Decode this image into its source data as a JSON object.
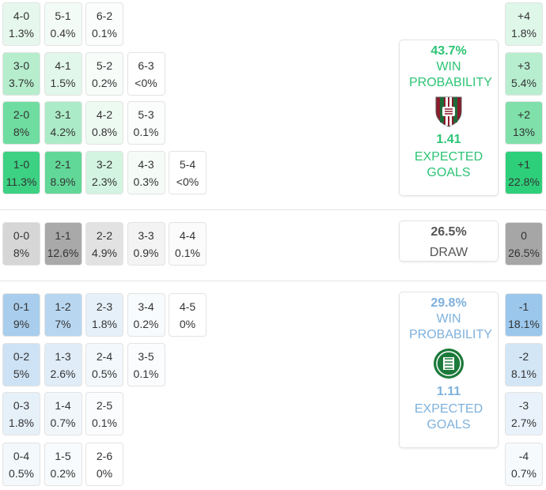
{
  "home": {
    "rows": [
      [
        {
          "score": "4-0",
          "prob": "1.3%",
          "color": "#e6f8ee"
        },
        {
          "score": "5-1",
          "prob": "0.4%",
          "color": "#f3fbf6"
        },
        {
          "score": "6-2",
          "prob": "0.1%",
          "color": "#fafdfb"
        }
      ],
      [
        {
          "score": "3-0",
          "prob": "3.7%",
          "color": "#b5edcd"
        },
        {
          "score": "4-1",
          "prob": "1.5%",
          "color": "#e2f7eb"
        },
        {
          "score": "5-2",
          "prob": "0.2%",
          "color": "#f7fcf9"
        },
        {
          "score": "6-3",
          "prob": "<0%",
          "color": "#ffffff"
        }
      ],
      [
        {
          "score": "2-0",
          "prob": "8%",
          "color": "#6fdca0"
        },
        {
          "score": "3-1",
          "prob": "4.2%",
          "color": "#acebc7"
        },
        {
          "score": "4-2",
          "prob": "0.8%",
          "color": "#edfaf2"
        },
        {
          "score": "5-3",
          "prob": "0.1%",
          "color": "#fafdfb"
        }
      ],
      [
        {
          "score": "1-0",
          "prob": "11.3%",
          "color": "#3dd183"
        },
        {
          "score": "2-1",
          "prob": "8.9%",
          "color": "#62d898"
        },
        {
          "score": "3-2",
          "prob": "2.3%",
          "color": "#d3f4e1"
        },
        {
          "score": "4-3",
          "prob": "0.3%",
          "color": "#f5fcf8"
        },
        {
          "score": "5-4",
          "prob": "<0%",
          "color": "#ffffff"
        }
      ]
    ],
    "margins": [
      {
        "label": "+4",
        "prob": "1.8%",
        "color": "#dff7e9"
      },
      {
        "label": "+3",
        "prob": "5.4%",
        "color": "#b8eed0"
      },
      {
        "label": "+2",
        "prob": "13%",
        "color": "#7fe0aa"
      },
      {
        "label": "+1",
        "prob": "22.8%",
        "color": "#2ecf7a"
      }
    ],
    "summary": {
      "win_probability": "43.7%",
      "win_label": "WIN PROBABILITY",
      "expected_goals": "1.41",
      "expected_label": "EXPECTED GOALS"
    }
  },
  "draw": {
    "rows": [
      [
        {
          "score": "0-0",
          "prob": "8%",
          "color": "#d6d6d6"
        },
        {
          "score": "1-1",
          "prob": "12.6%",
          "color": "#a9a9a9"
        },
        {
          "score": "2-2",
          "prob": "4.9%",
          "color": "#e2e2e2"
        },
        {
          "score": "3-3",
          "prob": "0.9%",
          "color": "#f3f3f3"
        },
        {
          "score": "4-4",
          "prob": "0.1%",
          "color": "#fbfbfb"
        }
      ]
    ],
    "margins": [
      {
        "label": "0",
        "prob": "26.5%",
        "color": "#a6a6a6"
      }
    ],
    "summary": {
      "probability": "26.5%",
      "label": "DRAW"
    }
  },
  "away": {
    "rows": [
      [
        {
          "score": "0-1",
          "prob": "9%",
          "color": "#a9cdec"
        },
        {
          "score": "1-2",
          "prob": "7%",
          "color": "#b8d6f0"
        },
        {
          "score": "2-3",
          "prob": "1.8%",
          "color": "#e6f0f9"
        },
        {
          "score": "3-4",
          "prob": "0.2%",
          "color": "#f8fbfd"
        },
        {
          "score": "4-5",
          "prob": "0%",
          "color": "#ffffff"
        }
      ],
      [
        {
          "score": "0-2",
          "prob": "5%",
          "color": "#cde2f4"
        },
        {
          "score": "1-3",
          "prob": "2.6%",
          "color": "#e0edf8"
        },
        {
          "score": "2-4",
          "prob": "0.5%",
          "color": "#f3f8fc"
        },
        {
          "score": "3-5",
          "prob": "0.1%",
          "color": "#fafcfe"
        }
      ],
      [
        {
          "score": "0-3",
          "prob": "1.8%",
          "color": "#e6f0f9"
        },
        {
          "score": "1-4",
          "prob": "0.7%",
          "color": "#f1f6fb"
        },
        {
          "score": "2-5",
          "prob": "0.1%",
          "color": "#fafcfe"
        }
      ],
      [
        {
          "score": "0-4",
          "prob": "0.5%",
          "color": "#f3f8fc"
        },
        {
          "score": "1-5",
          "prob": "0.2%",
          "color": "#f8fbfd"
        },
        {
          "score": "2-6",
          "prob": "0%",
          "color": "#ffffff"
        }
      ]
    ],
    "margins": [
      {
        "label": "-1",
        "prob": "18.1%",
        "color": "#9cc7ec"
      },
      {
        "label": "-2",
        "prob": "8.1%",
        "color": "#d3e6f6"
      },
      {
        "label": "-3",
        "prob": "2.7%",
        "color": "#e9f2fa"
      },
      {
        "label": "-4",
        "prob": "0.7%",
        "color": "#f6fafd"
      }
    ],
    "summary": {
      "win_probability": "29.8%",
      "win_label": "WIN PROBABILITY",
      "expected_goals": "1.11",
      "expected_label": "EXPECTED GOALS"
    }
  }
}
